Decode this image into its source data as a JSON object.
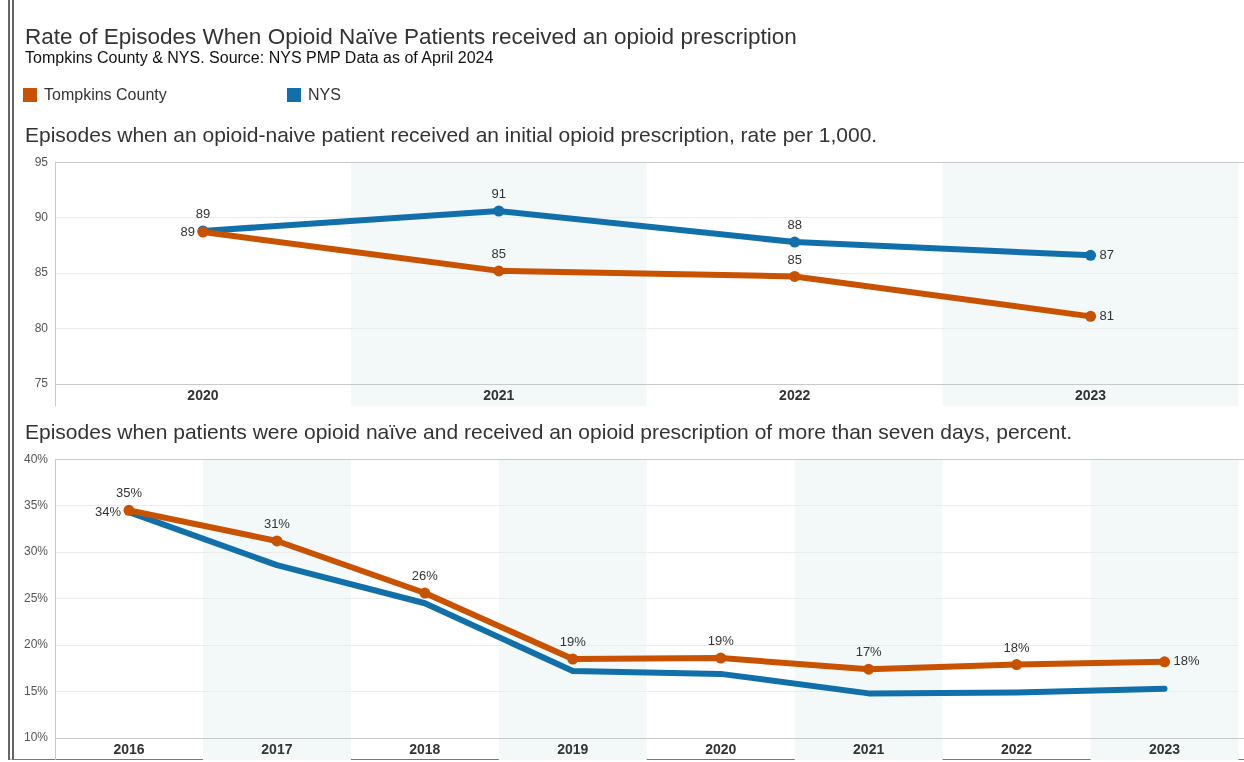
{
  "chart_data": [
    {
      "type": "other",
      "title": "Rate of Episodes When Opioid Naïve Patients received an opioid prescription",
      "subtitle": "Tompkins County & NYS. Source: NYS PMP Data as of April 2024"
    },
    {
      "type": "line",
      "title": "Episodes when an opioid-naive patient received an initial opioid prescription, rate per 1,000.",
      "categories": [
        "2020",
        "2021",
        "2022",
        "2023"
      ],
      "series": [
        {
          "name": "Tompkins County",
          "color": "#c85200",
          "values": [
            88.7,
            85.2,
            84.7,
            81.1
          ],
          "value_labels": [
            "89",
            "85",
            "85",
            "81"
          ]
        },
        {
          "name": "NYS",
          "color": "#1170aa",
          "values": [
            88.8,
            90.6,
            87.8,
            86.6
          ],
          "value_labels": [
            "89",
            "91",
            "88",
            "87"
          ]
        }
      ],
      "ylim": [
        75,
        95
      ],
      "yticks": [
        75,
        80,
        85,
        90,
        95
      ],
      "grid": "y",
      "legend": "top left",
      "marker": "circle",
      "bands": [
        {
          "axis": "x",
          "from": "2021",
          "to": "2021",
          "color": "#f3f8f8"
        },
        {
          "axis": "x",
          "from": "2023",
          "to": "2023",
          "color": "#f3f8f8"
        }
      ]
    },
    {
      "type": "line",
      "title": "Episodes when patients were opioid naïve and received an opioid prescription of more than seven days, percent.",
      "categories": [
        "2016",
        "2017",
        "2018",
        "2019",
        "2020",
        "2021",
        "2022",
        "2023"
      ],
      "series": [
        {
          "color": "#c85200",
          "values": [
            34.5,
            31.2,
            25.6,
            18.5,
            18.6,
            17.4,
            17.9,
            18.2
          ],
          "value_labels": [
            "35%",
            "31%",
            "26%",
            "19%",
            "19%",
            "17%",
            "18%",
            "18%"
          ]
        },
        {
          "color": "#1170aa",
          "marker": "none",
          "values": [
            34.3,
            28.6,
            24.5,
            17.2,
            16.9,
            14.8,
            14.9,
            15.3
          ],
          "value_labels": [
            "34%",
            null,
            null,
            null,
            null,
            null,
            null,
            null
          ]
        }
      ],
      "ylim": [
        10,
        40
      ],
      "yticks": [
        {
          "value": 10,
          "label": "10%"
        },
        {
          "value": 15,
          "label": "15%"
        },
        {
          "value": 20,
          "label": "20%"
        },
        {
          "value": 25,
          "label": "25%"
        },
        {
          "value": 30,
          "label": "30%"
        },
        {
          "value": 35,
          "label": "35%"
        },
        {
          "value": 40,
          "label": "40%"
        }
      ],
      "grid": "y",
      "marker": "circle",
      "bands": [
        {
          "axis": "x",
          "from": "2017",
          "to": "2017",
          "color": "#f3f8f8"
        },
        {
          "axis": "x",
          "from": "2019",
          "to": "2019",
          "color": "#f3f8f8"
        },
        {
          "axis": "x",
          "from": "2021",
          "to": "2021",
          "color": "#f3f8f8"
        },
        {
          "axis": "x",
          "from": "2023",
          "to": "2023",
          "color": "#f3f8f8"
        }
      ]
    }
  ]
}
